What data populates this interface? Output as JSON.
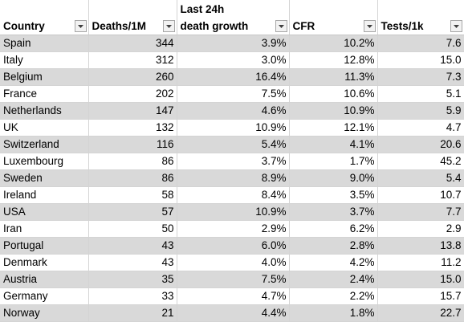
{
  "headers": [
    {
      "lines": [
        "Country"
      ]
    },
    {
      "lines": [
        "Deaths/1M"
      ]
    },
    {
      "lines": [
        "Last 24h",
        "death growth"
      ]
    },
    {
      "lines": [
        "CFR"
      ]
    },
    {
      "lines": [
        "Tests/1k"
      ]
    }
  ],
  "rows": [
    [
      "Spain",
      "344",
      "3.9%",
      "10.2%",
      "7.6"
    ],
    [
      "Italy",
      "312",
      "3.0%",
      "12.8%",
      "15.0"
    ],
    [
      "Belgium",
      "260",
      "16.4%",
      "11.3%",
      "7.3"
    ],
    [
      "France",
      "202",
      "7.5%",
      "10.6%",
      "5.1"
    ],
    [
      "Netherlands",
      "147",
      "4.6%",
      "10.9%",
      "5.9"
    ],
    [
      "UK",
      "132",
      "10.9%",
      "12.1%",
      "4.7"
    ],
    [
      "Switzerland",
      "116",
      "5.4%",
      "4.1%",
      "20.6"
    ],
    [
      "Luxembourg",
      "86",
      "3.7%",
      "1.7%",
      "45.2"
    ],
    [
      "Sweden",
      "86",
      "8.9%",
      "9.0%",
      "5.4"
    ],
    [
      "Ireland",
      "58",
      "8.4%",
      "3.5%",
      "10.7"
    ],
    [
      "USA",
      "57",
      "10.9%",
      "3.7%",
      "7.7"
    ],
    [
      "Iran",
      "50",
      "2.9%",
      "6.2%",
      "2.9"
    ],
    [
      "Portugal",
      "43",
      "6.0%",
      "2.8%",
      "13.8"
    ],
    [
      "Denmark",
      "43",
      "4.0%",
      "4.2%",
      "11.2"
    ],
    [
      "Austria",
      "35",
      "7.5%",
      "2.4%",
      "15.0"
    ],
    [
      "Germany",
      "33",
      "4.7%",
      "2.2%",
      "15.7"
    ],
    [
      "Norway",
      "21",
      "4.4%",
      "1.8%",
      "22.7"
    ]
  ],
  "icons": {
    "filter": "filter-dropdown-icon"
  },
  "colors": {
    "band": "#d9d9d9",
    "grid": "#d4d4d4"
  }
}
